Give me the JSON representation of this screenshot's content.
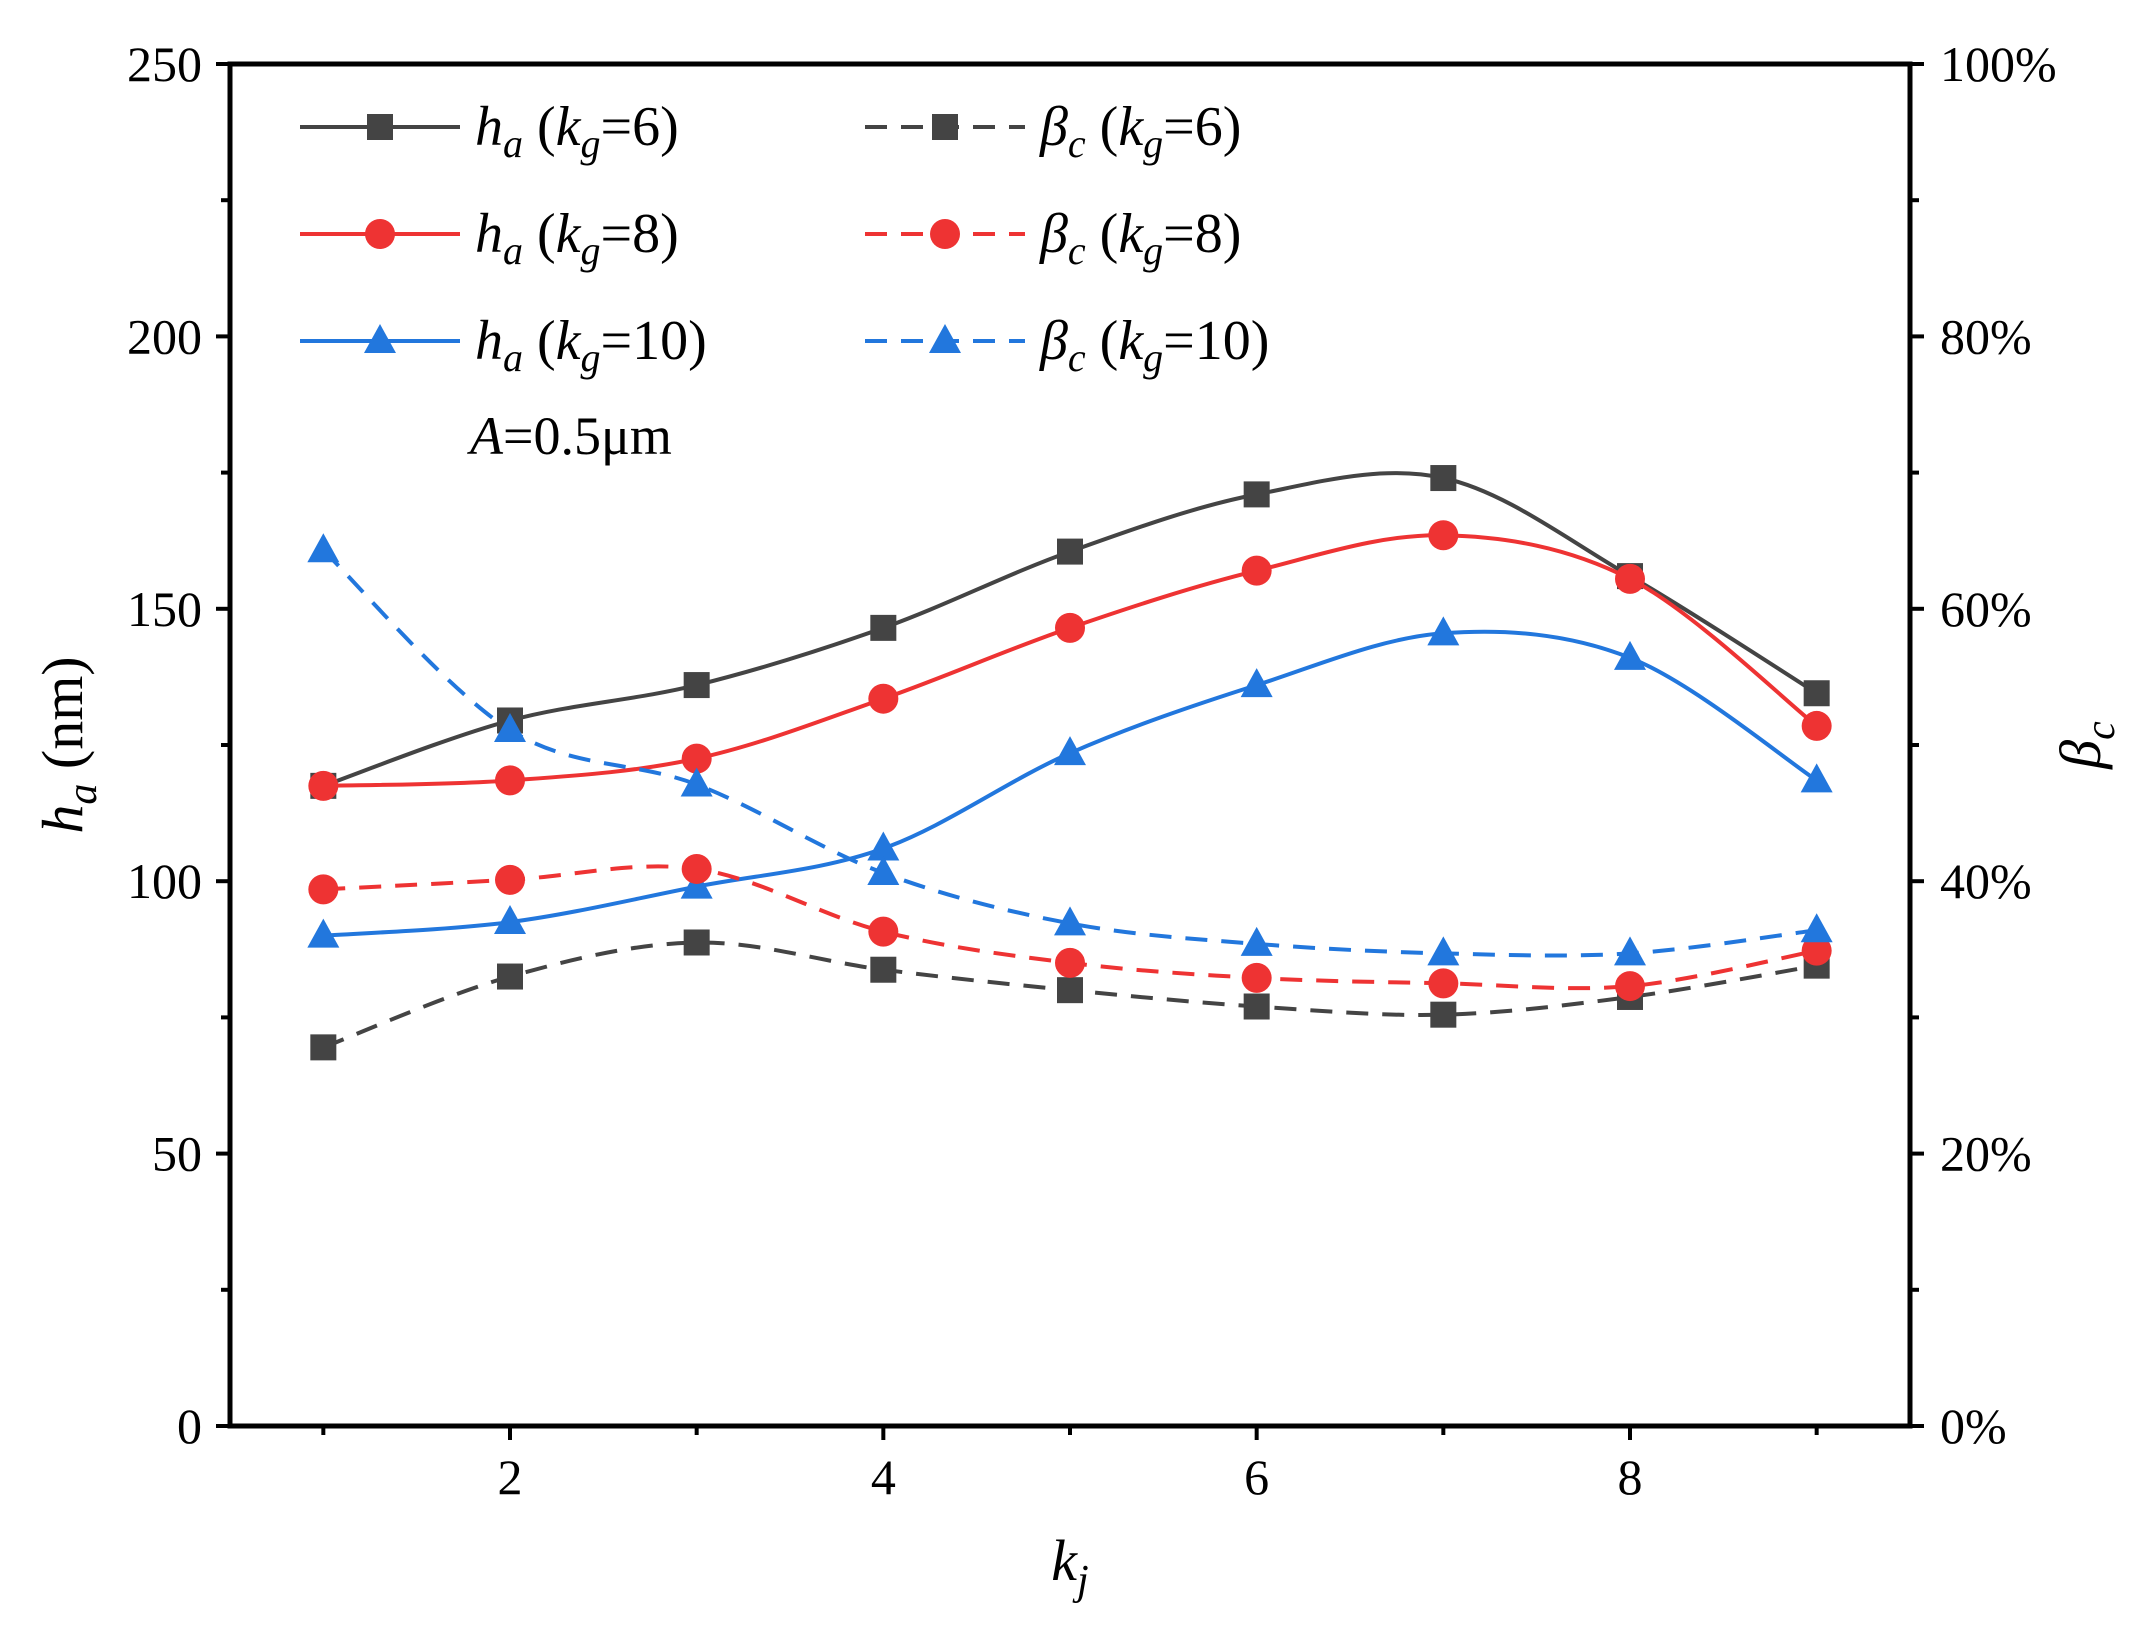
{
  "chart_data": {
    "type": "line",
    "x": [
      1,
      2,
      3,
      4,
      5,
      6,
      7,
      8,
      9
    ],
    "xlim": [
      0.5,
      9.5
    ],
    "xticks": [
      2,
      4,
      6,
      8
    ],
    "xlabel": {
      "main": "k",
      "sub": "j"
    },
    "ylabel": {
      "main": "h",
      "sub": "a",
      "unit": " (nm)"
    },
    "ylim": [
      0,
      250
    ],
    "yticks": [
      0,
      50,
      100,
      150,
      200,
      250
    ],
    "y2label": {
      "main": "β",
      "sub": "c"
    },
    "y2lim": [
      0,
      100
    ],
    "y2ticks": [
      "0%",
      "20%",
      "40%",
      "60%",
      "80%",
      "100%"
    ],
    "annotation": {
      "prefix": "A",
      "text": "=0.5μm"
    },
    "series": [
      {
        "name": "h_a (k_g=6)",
        "symbol": "h",
        "sub": "a",
        "kg": "6",
        "axis": "left",
        "style": "solid",
        "marker": "square",
        "color": "#444444",
        "values": [
          117.5,
          129.5,
          136,
          146.5,
          160.5,
          171,
          174,
          156,
          134.5
        ]
      },
      {
        "name": "h_a (k_g=8)",
        "symbol": "h",
        "sub": "a",
        "kg": "8",
        "axis": "left",
        "style": "solid",
        "marker": "circle",
        "color": "#ee3333",
        "values": [
          117.5,
          118.5,
          122.5,
          133.5,
          146.5,
          157,
          163.5,
          155.5,
          128.5
        ]
      },
      {
        "name": "h_a (k_g=10)",
        "symbol": "h",
        "sub": "a",
        "kg": "10",
        "axis": "left",
        "style": "solid",
        "marker": "triangle",
        "color": "#2277dd",
        "values": [
          90,
          92.5,
          99,
          106,
          123.5,
          136,
          145.5,
          141,
          118.5
        ]
      },
      {
        "name": "β_c (k_g=6)",
        "symbol": "β",
        "sub": "c",
        "kg": "6",
        "axis": "right",
        "style": "dashed",
        "marker": "square",
        "color": "#444444",
        "values": [
          27.8,
          33,
          35.5,
          33.5,
          32,
          30.8,
          30.2,
          31.5,
          33.8
        ]
      },
      {
        "name": "β_c (k_g=8)",
        "symbol": "β",
        "sub": "c",
        "kg": "8",
        "axis": "right",
        "style": "dashed",
        "marker": "circle",
        "color": "#ee3333",
        "values": [
          39.4,
          40.1,
          40.9,
          36.3,
          34,
          32.9,
          32.5,
          32.3,
          34.9
        ]
      },
      {
        "name": "β_c (k_g=10)",
        "symbol": "β",
        "sub": "c",
        "kg": "10",
        "axis": "right",
        "style": "dashed",
        "marker": "triangle",
        "color": "#2277dd",
        "values": [
          64.3,
          51.1,
          47.1,
          40.6,
          36.9,
          35.4,
          34.7,
          34.7,
          36.4
        ]
      }
    ]
  }
}
